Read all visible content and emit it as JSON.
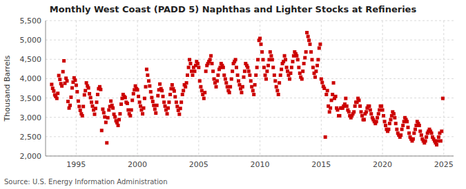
{
  "chart_data": {
    "type": "scatter",
    "title": "Monthly West Coast (PADD 5) Naphthas and Lighter Stocks at Refineries",
    "y_label": "Thousand Barrels",
    "annotations": [
      "Source: U.S. Energy Information Administration"
    ],
    "color": "#cc0000",
    "marker": "square",
    "grid": true,
    "xlim": [
      1992.5,
      2025.8
    ],
    "ylim": [
      2000,
      5500
    ],
    "xticks": [
      1995,
      2000,
      2005,
      2010,
      2015,
      2020,
      2025
    ],
    "yticks": [
      {
        "value": 2000,
        "label": "2,000"
      },
      {
        "value": 2500,
        "label": "2,500"
      },
      {
        "value": 3000,
        "label": "3,000"
      },
      {
        "value": 3500,
        "label": "3,500"
      },
      {
        "value": 4000,
        "label": "4,000"
      },
      {
        "value": 4500,
        "label": "4,500"
      },
      {
        "value": 5000,
        "label": "5,000"
      },
      {
        "value": 5500,
        "label": "5,500"
      }
    ],
    "x": [
      1993.0,
      1993.08,
      1993.17,
      1993.25,
      1993.33,
      1993.42,
      1993.5,
      1993.58,
      1993.67,
      1993.75,
      1993.83,
      1993.92,
      1994.0,
      1994.08,
      1994.17,
      1994.25,
      1994.33,
      1994.42,
      1994.5,
      1994.58,
      1994.67,
      1994.75,
      1994.83,
      1994.92,
      1995.0,
      1995.08,
      1995.17,
      1995.25,
      1995.33,
      1995.42,
      1995.5,
      1995.58,
      1995.67,
      1995.75,
      1995.83,
      1995.92,
      1996.0,
      1996.08,
      1996.17,
      1996.25,
      1996.33,
      1996.42,
      1996.5,
      1996.58,
      1996.67,
      1996.75,
      1996.83,
      1996.92,
      1997.0,
      1997.08,
      1997.17,
      1997.25,
      1997.33,
      1997.42,
      1997.5,
      1997.58,
      1997.67,
      1997.75,
      1997.83,
      1997.92,
      1998.0,
      1998.08,
      1998.17,
      1998.25,
      1998.33,
      1998.42,
      1998.5,
      1998.58,
      1998.67,
      1998.75,
      1998.83,
      1998.92,
      1999.0,
      1999.08,
      1999.17,
      1999.25,
      1999.33,
      1999.42,
      1999.5,
      1999.58,
      1999.67,
      1999.75,
      1999.83,
      1999.92,
      2000.0,
      2000.08,
      2000.17,
      2000.25,
      2000.33,
      2000.42,
      2000.5,
      2000.58,
      2000.67,
      2000.75,
      2000.83,
      2000.92,
      2001.0,
      2001.08,
      2001.17,
      2001.25,
      2001.33,
      2001.42,
      2001.5,
      2001.58,
      2001.67,
      2001.75,
      2001.83,
      2001.92,
      2002.0,
      2002.08,
      2002.17,
      2002.25,
      2002.33,
      2002.42,
      2002.5,
      2002.58,
      2002.67,
      2002.75,
      2002.83,
      2002.92,
      2003.0,
      2003.08,
      2003.17,
      2003.25,
      2003.33,
      2003.42,
      2003.5,
      2003.58,
      2003.67,
      2003.75,
      2003.83,
      2003.92,
      2004.0,
      2004.08,
      2004.17,
      2004.25,
      2004.33,
      2004.42,
      2004.5,
      2004.58,
      2004.67,
      2004.75,
      2004.83,
      2004.92,
      2005.0,
      2005.08,
      2005.17,
      2005.25,
      2005.33,
      2005.42,
      2005.5,
      2005.58,
      2005.67,
      2005.75,
      2005.83,
      2005.92,
      2006.0,
      2006.08,
      2006.17,
      2006.25,
      2006.33,
      2006.42,
      2006.5,
      2006.58,
      2006.67,
      2006.75,
      2006.83,
      2006.92,
      2007.0,
      2007.08,
      2007.17,
      2007.25,
      2007.33,
      2007.42,
      2007.5,
      2007.58,
      2007.67,
      2007.75,
      2007.83,
      2007.92,
      2008.0,
      2008.08,
      2008.17,
      2008.25,
      2008.33,
      2008.42,
      2008.5,
      2008.58,
      2008.67,
      2008.75,
      2008.83,
      2008.92,
      2009.0,
      2009.08,
      2009.17,
      2009.25,
      2009.33,
      2009.42,
      2009.5,
      2009.58,
      2009.67,
      2009.75,
      2009.83,
      2009.92,
      2010.0,
      2010.08,
      2010.17,
      2010.25,
      2010.33,
      2010.42,
      2010.5,
      2010.58,
      2010.67,
      2010.75,
      2010.83,
      2010.92,
      2011.0,
      2011.08,
      2011.17,
      2011.25,
      2011.33,
      2011.42,
      2011.5,
      2011.58,
      2011.67,
      2011.75,
      2011.83,
      2011.92,
      2012.0,
      2012.08,
      2012.17,
      2012.25,
      2012.33,
      2012.42,
      2012.5,
      2012.58,
      2012.67,
      2012.75,
      2012.83,
      2012.92,
      2013.0,
      2013.08,
      2013.17,
      2013.25,
      2013.33,
      2013.42,
      2013.5,
      2013.58,
      2013.67,
      2013.75,
      2013.83,
      2013.92,
      2014.0,
      2014.08,
      2014.17,
      2014.25,
      2014.33,
      2014.42,
      2014.5,
      2014.58,
      2014.67,
      2014.75,
      2014.83,
      2014.92,
      2015.0,
      2015.08,
      2015.17,
      2015.25,
      2015.33,
      2015.42,
      2015.5,
      2015.58,
      2015.67,
      2015.75,
      2015.83,
      2015.92,
      2016.0,
      2016.08,
      2016.17,
      2016.25,
      2016.33,
      2016.42,
      2016.5,
      2016.58,
      2016.67,
      2016.75,
      2016.83,
      2016.92,
      2017.0,
      2017.08,
      2017.17,
      2017.25,
      2017.33,
      2017.42,
      2017.5,
      2017.58,
      2017.67,
      2017.75,
      2017.83,
      2017.92,
      2018.0,
      2018.08,
      2018.17,
      2018.25,
      2018.33,
      2018.42,
      2018.5,
      2018.58,
      2018.67,
      2018.75,
      2018.83,
      2018.92,
      2019.0,
      2019.08,
      2019.17,
      2019.25,
      2019.33,
      2019.42,
      2019.5,
      2019.58,
      2019.67,
      2019.75,
      2019.83,
      2019.92,
      2020.0,
      2020.08,
      2020.17,
      2020.25,
      2020.33,
      2020.42,
      2020.5,
      2020.58,
      2020.67,
      2020.75,
      2020.83,
      2020.92,
      2021.0,
      2021.08,
      2021.17,
      2021.25,
      2021.33,
      2021.42,
      2021.5,
      2021.58,
      2021.67,
      2021.75,
      2021.83,
      2021.92,
      2022.0,
      2022.08,
      2022.17,
      2022.25,
      2022.33,
      2022.42,
      2022.5,
      2022.58,
      2022.67,
      2022.75,
      2022.83,
      2022.92,
      2023.0,
      2023.08,
      2023.17,
      2023.25,
      2023.33,
      2023.42,
      2023.5,
      2023.58,
      2023.67,
      2023.75,
      2023.83,
      2023.92,
      2024.0,
      2024.08,
      2024.17,
      2024.25,
      2024.33,
      2024.42,
      2024.5,
      2024.58,
      2024.67,
      2024.75,
      2024.83,
      2024.92
    ],
    "values": [
      3850,
      3750,
      3680,
      3580,
      3540,
      3490,
      3620,
      4080,
      3980,
      3870,
      3810,
      4180,
      4460,
      3880,
      4010,
      3940,
      3410,
      3240,
      3310,
      3520,
      3760,
      3910,
      4020,
      3960,
      3830,
      3660,
      3420,
      3280,
      3180,
      3090,
      3040,
      3280,
      3580,
      3690,
      3890,
      3810,
      3760,
      3610,
      3510,
      3390,
      3290,
      3190,
      3080,
      3230,
      3390,
      3590,
      3740,
      3790,
      3720,
      2660,
      3210,
      3120,
      3010,
      2870,
      2340,
      2990,
      3190,
      3280,
      3420,
      3310,
      3240,
      3080,
      3010,
      2910,
      2860,
      2790,
      2940,
      3090,
      3340,
      3490,
      3590,
      3540,
      3510,
      3390,
      3360,
      3190,
      3090,
      3040,
      3190,
      3440,
      3610,
      3710,
      3810,
      3740,
      3710,
      3540,
      3390,
      3290,
      3190,
      3090,
      3240,
      3490,
      3790,
      4240,
      4090,
      3940,
      3810,
      3660,
      3510,
      3410,
      3310,
      3210,
      3110,
      3310,
      3560,
      3710,
      3860,
      3740,
      3690,
      3540,
      3390,
      3290,
      3190,
      3090,
      3240,
      3390,
      3590,
      3740,
      3840,
      3740,
      3680,
      3530,
      3390,
      3280,
      3180,
      3080,
      3230,
      3390,
      3590,
      3690,
      3840,
      3790,
      3890,
      4090,
      4290,
      4490,
      4390,
      4190,
      4090,
      4290,
      4190,
      4340,
      4440,
      4390,
      4290,
      3940,
      3790,
      3690,
      3590,
      3490,
      3640,
      4190,
      4340,
      4390,
      4440,
      4490,
      4590,
      4390,
      4190,
      3990,
      3890,
      3790,
      3940,
      4090,
      4240,
      4290,
      4390,
      4340,
      4290,
      4090,
      3990,
      3890,
      3790,
      3690,
      3640,
      3790,
      3990,
      4190,
      4390,
      4440,
      4490,
      4290,
      4090,
      3940,
      3840,
      3740,
      3640,
      3790,
      4040,
      4190,
      4390,
      4340,
      4290,
      4190,
      4090,
      3940,
      3790,
      3690,
      3590,
      3840,
      4090,
      4290,
      4490,
      4990,
      5040,
      4890,
      4690,
      4490,
      4290,
      4090,
      3990,
      4190,
      4340,
      4490,
      4690,
      4590,
      4490,
      4290,
      4090,
      3940,
      3790,
      3690,
      3590,
      3890,
      4090,
      4240,
      4390,
      4440,
      4590,
      4490,
      4290,
      4190,
      4090,
      3990,
      4140,
      4290,
      4440,
      4590,
      4690,
      4640,
      4590,
      4490,
      4290,
      4140,
      4040,
      3990,
      4190,
      4390,
      4540,
      4690,
      5190,
      5090,
      4990,
      4890,
      4690,
      4490,
      4290,
      4140,
      4040,
      4190,
      4340,
      4490,
      4790,
      4890,
      3990,
      3900,
      3800,
      3750,
      2490,
      3590,
      3690,
      3290,
      3140,
      3240,
      3440,
      3590,
      3890,
      3490,
      3540,
      3240,
      3190,
      3040,
      3040,
      3240,
      3240,
      3240,
      3290,
      3340,
      3490,
      3290,
      3190,
      3140,
      3040,
      2990,
      3040,
      3090,
      3140,
      3290,
      3390,
      3390,
      3490,
      3440,
      3290,
      3140,
      3040,
      2940,
      2940,
      3090,
      3140,
      3240,
      3290,
      3290,
      3190,
      3090,
      2990,
      2940,
      2890,
      2840,
      2890,
      2990,
      3090,
      3190,
      3290,
      3290,
      3190,
      3040,
      2890,
      2790,
      2690,
      2640,
      2690,
      2840,
      2940,
      3040,
      3140,
      3090,
      2990,
      2840,
      2690,
      2590,
      2540,
      2490,
      2540,
      2690,
      2790,
      2890,
      2990,
      2940,
      2890,
      2740,
      2590,
      2490,
      2440,
      2390,
      2440,
      2590,
      2690,
      2790,
      2890,
      2840,
      2790,
      2640,
      2540,
      2440,
      2390,
      2340,
      2390,
      2490,
      2590,
      2640,
      2690,
      2640,
      2590,
      2490,
      2440,
      2390,
      2340,
      2290,
      2390,
      2490,
      2590,
      2390,
      2640,
      3490
    ]
  }
}
